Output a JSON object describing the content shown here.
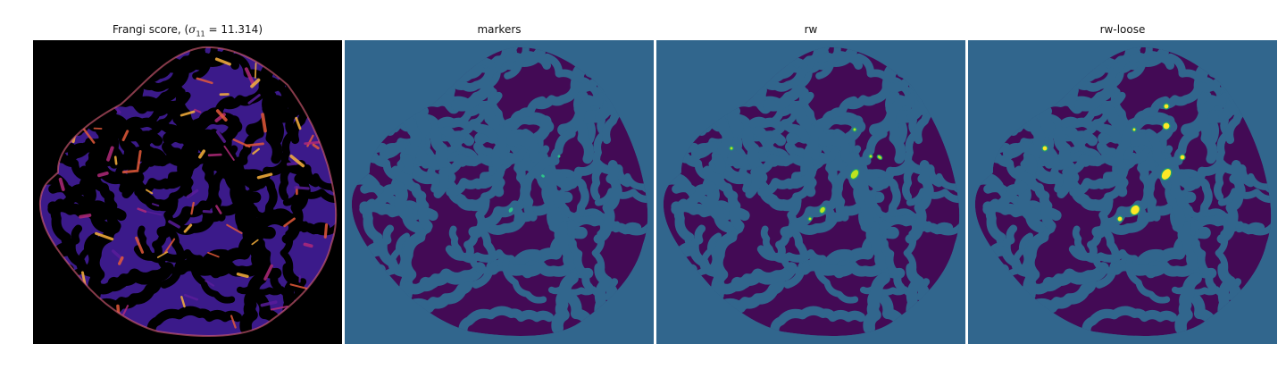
{
  "panels": [
    {
      "key": "frangi",
      "title_prefix": "Frangi score, (",
      "title_sigma": "σ",
      "title_sub": "11",
      "title_eq": " = 11.314)",
      "colormap": "magma",
      "background": "#000000",
      "blob_color": "#3b1a8a",
      "ridge_colors": [
        "#5a1d9b",
        "#b12a7a",
        "#e45a3a",
        "#f9b23c"
      ]
    },
    {
      "key": "markers",
      "title": "markers",
      "colormap": "viridis",
      "background": "#31668d",
      "blob_color": "#430a55",
      "marker_color": "#2ec28a"
    },
    {
      "key": "rw",
      "title": "rw",
      "colormap": "viridis",
      "background": "#31668d",
      "blob_color": "#430a55",
      "marker_color": "#bde31f"
    },
    {
      "key": "rw-loose",
      "title": "rw-loose",
      "colormap": "viridis",
      "background": "#31668d",
      "blob_color": "#430a55",
      "marker_color": "#fde725"
    }
  ]
}
